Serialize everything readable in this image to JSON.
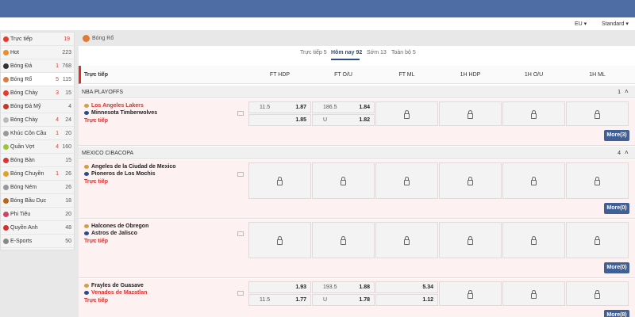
{
  "header": {
    "odds_format": "EU",
    "view": "Standard"
  },
  "sidebar": [
    {
      "name": "Trực tiếp",
      "live": 19
    },
    {
      "name": "Hot",
      "total": 223
    },
    {
      "name": "Bóng Đá",
      "live": 1,
      "total": 768
    },
    {
      "name": "Bóng Rổ",
      "live": 5,
      "total": 115
    },
    {
      "name": "Bóng Chày",
      "live": 3,
      "total": 15
    },
    {
      "name": "Bóng Đá Mỹ",
      "total": 4
    },
    {
      "name": "Bóng Chày",
      "live": 4,
      "total": 24
    },
    {
      "name": "Khúc Côn Cầu",
      "live": 1,
      "total": 20
    },
    {
      "name": "Quần Vợt",
      "live": 4,
      "total": 160
    },
    {
      "name": "Bóng Bàn",
      "total": 15
    },
    {
      "name": "Bóng Chuyền",
      "live": 1,
      "total": 26
    },
    {
      "name": "Bóng Ném",
      "total": 26
    },
    {
      "name": "Bóng Bầu Dục",
      "total": 18
    },
    {
      "name": "Phi Tiêu",
      "total": 20
    },
    {
      "name": "Quyền Anh",
      "total": 48
    },
    {
      "name": "E-Sports",
      "total": 50
    }
  ],
  "section": {
    "title": "Bóng Rổ",
    "tabs": [
      "Trực tiếp 5",
      "Hôm nay 92",
      "Sớm 13",
      "Toàn bộ 5"
    ],
    "columns": [
      "Trực tiếp",
      "FT HDP",
      "FT O/U",
      "FT ML",
      "1H HDP",
      "1H O/U",
      "1H ML"
    ],
    "leagues": [
      {
        "name": "NBA PLAYOFFS",
        "count": 1,
        "matches": [
          {
            "home": {
              "name": "Los Angeles Lakers",
              "color": "#d9302c"
            },
            "away": {
              "name": "Minnesota Timberwolves",
              "color": "#222222"
            },
            "status": "Trực tiếp",
            "more": "More(3)",
            "markets": [
              [
                {
                  "line": "11.5",
                  "price": "1.87"
                },
                {
                  "price": "1.85"
                }
              ],
              [
                {
                  "line": "186.5",
                  "price": "1.84"
                },
                {
                  "line": "U",
                  "price": "1.82"
                }
              ],
              null,
              null,
              null,
              null
            ]
          }
        ]
      },
      {
        "name": "MEXICO CIBACOPA",
        "count": 4,
        "matches": [
          {
            "home": {
              "name": "Angeles de la Ciudad de Mexico",
              "color": "#222222"
            },
            "away": {
              "name": "Pioneros de Los Mochis",
              "color": "#222222"
            },
            "status": "Trực tiếp",
            "more": "More(0)",
            "markets": [
              null,
              null,
              null,
              null,
              null,
              null
            ]
          },
          {
            "home": {
              "name": "Halcones de Obregon",
              "color": "#222222"
            },
            "away": {
              "name": "Astros de Jalisco",
              "color": "#222222"
            },
            "status": "Trực tiếp",
            "more": "More(0)",
            "markets": [
              null,
              null,
              null,
              null,
              null,
              null
            ]
          },
          {
            "home": {
              "name": "Frayles de Guasave",
              "color": "#222222"
            },
            "away": {
              "name": "Venados de Mazatlan",
              "color": "#d9302c"
            },
            "status": "Trực tiếp",
            "more": "More(8)",
            "markets": [
              [
                {
                  "price": "1.93"
                },
                {
                  "line": "11.5",
                  "price": "1.77"
                }
              ],
              [
                {
                  "line": "193.5",
                  "price": "1.88"
                },
                {
                  "line": "U",
                  "price": "1.78"
                }
              ],
              [
                {
                  "price": "5.34"
                },
                {
                  "price": "1.12"
                }
              ],
              null,
              null,
              null
            ]
          }
        ]
      }
    ]
  }
}
